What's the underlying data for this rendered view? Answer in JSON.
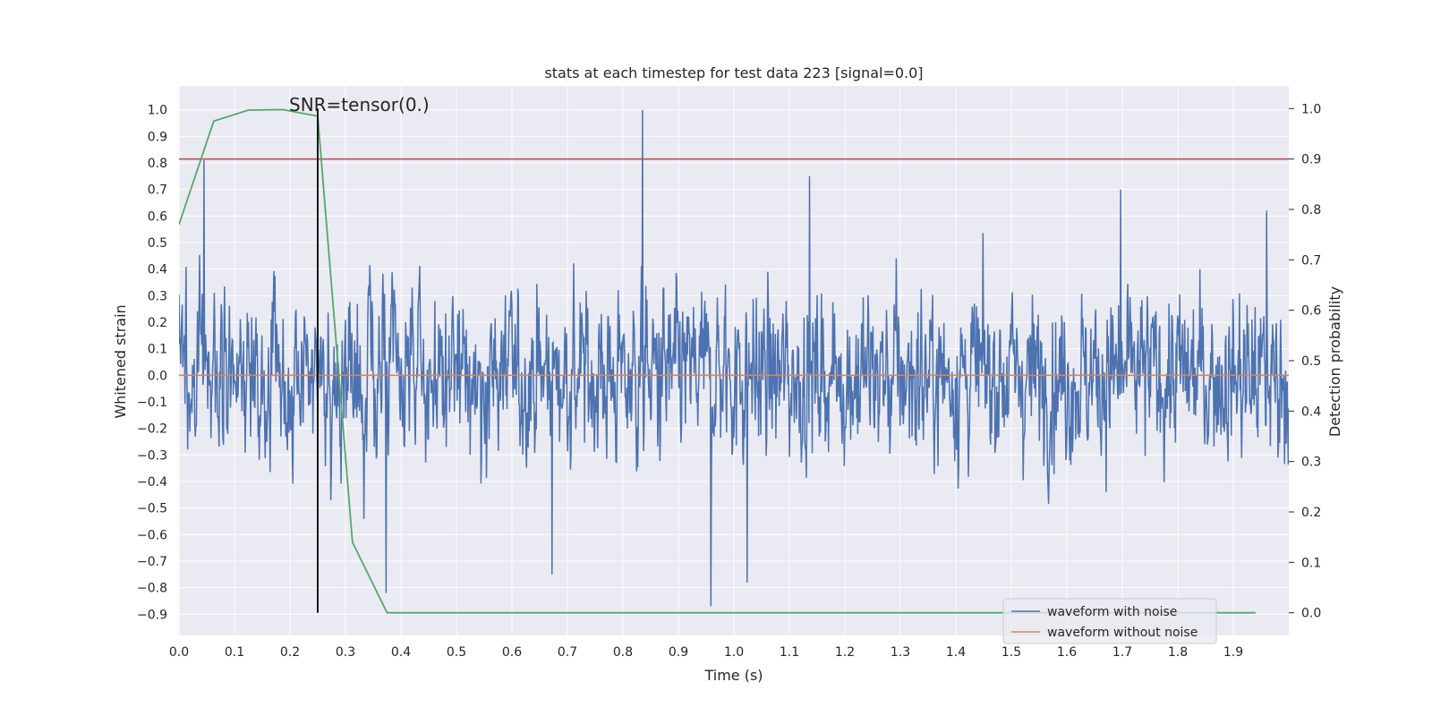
{
  "chart_data": {
    "type": "line",
    "title": "stats at each timestep for test data 223 [signal=0.0]",
    "xlabel": "Time (s)",
    "ylabel_left": "Whitened strain",
    "ylabel_right": "Detection probability",
    "xlim": [
      0.0,
      2.0
    ],
    "ylim_left": [
      -0.98,
      1.09
    ],
    "ylim_right": [
      -0.045,
      1.045
    ],
    "x_ticks": [
      "0.0",
      "0.1",
      "0.2",
      "0.3",
      "0.4",
      "0.5",
      "0.6",
      "0.7",
      "0.8",
      "0.9",
      "1.0",
      "1.1",
      "1.2",
      "1.3",
      "1.4",
      "1.5",
      "1.6",
      "1.7",
      "1.8",
      "1.9"
    ],
    "y_left_ticks": [
      "1.0",
      "0.9",
      "0.8",
      "0.7",
      "0.6",
      "0.5",
      "0.4",
      "0.3",
      "0.2",
      "0.1",
      "0.0",
      "-0.1",
      "-0.2",
      "-0.3",
      "-0.4",
      "-0.5",
      "-0.6",
      "-0.7",
      "-0.8",
      "-0.9"
    ],
    "y_right_ticks": [
      "1.0",
      "0.9",
      "0.8",
      "0.7",
      "0.6",
      "0.5",
      "0.4",
      "0.3",
      "0.2",
      "0.1",
      "0.0"
    ],
    "grid": true,
    "legend_position": "bottom-right",
    "colors": {
      "background": "#eaeaf2",
      "grid": "#ffffff",
      "noise_series": "#4c72b0",
      "clean_series": "#dd8452",
      "probability_series": "#55a868",
      "threshold": "#c44e52",
      "marker": "#000000"
    },
    "series": [
      {
        "name": "waveform with noise",
        "axis": "left",
        "samples": 2048,
        "x_range": [
          0.0,
          2.0
        ],
        "amplitude_range": [
          -0.87,
          1.0
        ],
        "peaks": [
          {
            "x": 0.045,
            "y": 0.81
          },
          {
            "x": 0.835,
            "y": 1.0
          },
          {
            "x": 0.958,
            "y": -0.87
          },
          {
            "x": 1.136,
            "y": 0.75
          },
          {
            "x": 1.697,
            "y": 0.7
          },
          {
            "x": 1.96,
            "y": 0.62
          },
          {
            "x": 0.373,
            "y": -0.82
          },
          {
            "x": 0.672,
            "y": -0.75
          },
          {
            "x": 1.024,
            "y": -0.78
          }
        ]
      },
      {
        "name": "waveform without noise",
        "axis": "left",
        "x": [
          0.0,
          2.0
        ],
        "y": [
          0.0,
          0.0
        ]
      },
      {
        "name": "",
        "axis": "right",
        "x": [
          0.0,
          0.0625,
          0.125,
          0.1875,
          0.25,
          0.3125,
          0.375,
          0.4375,
          0.5,
          1.0,
          1.5,
          1.94
        ],
        "y": [
          0.77,
          0.975,
          0.997,
          0.998,
          0.985,
          0.14,
          0.0,
          0.0,
          0.0,
          0.0,
          0.0,
          0.0
        ]
      }
    ],
    "threshold": {
      "axis": "right",
      "y": 0.9
    },
    "marker_line": {
      "x": 0.25,
      "y_bottom": 0.0,
      "y_top": 1.0
    },
    "annotation": {
      "text": "SNR=tensor(0.)",
      "x": 0.2,
      "y": 1.0
    }
  }
}
